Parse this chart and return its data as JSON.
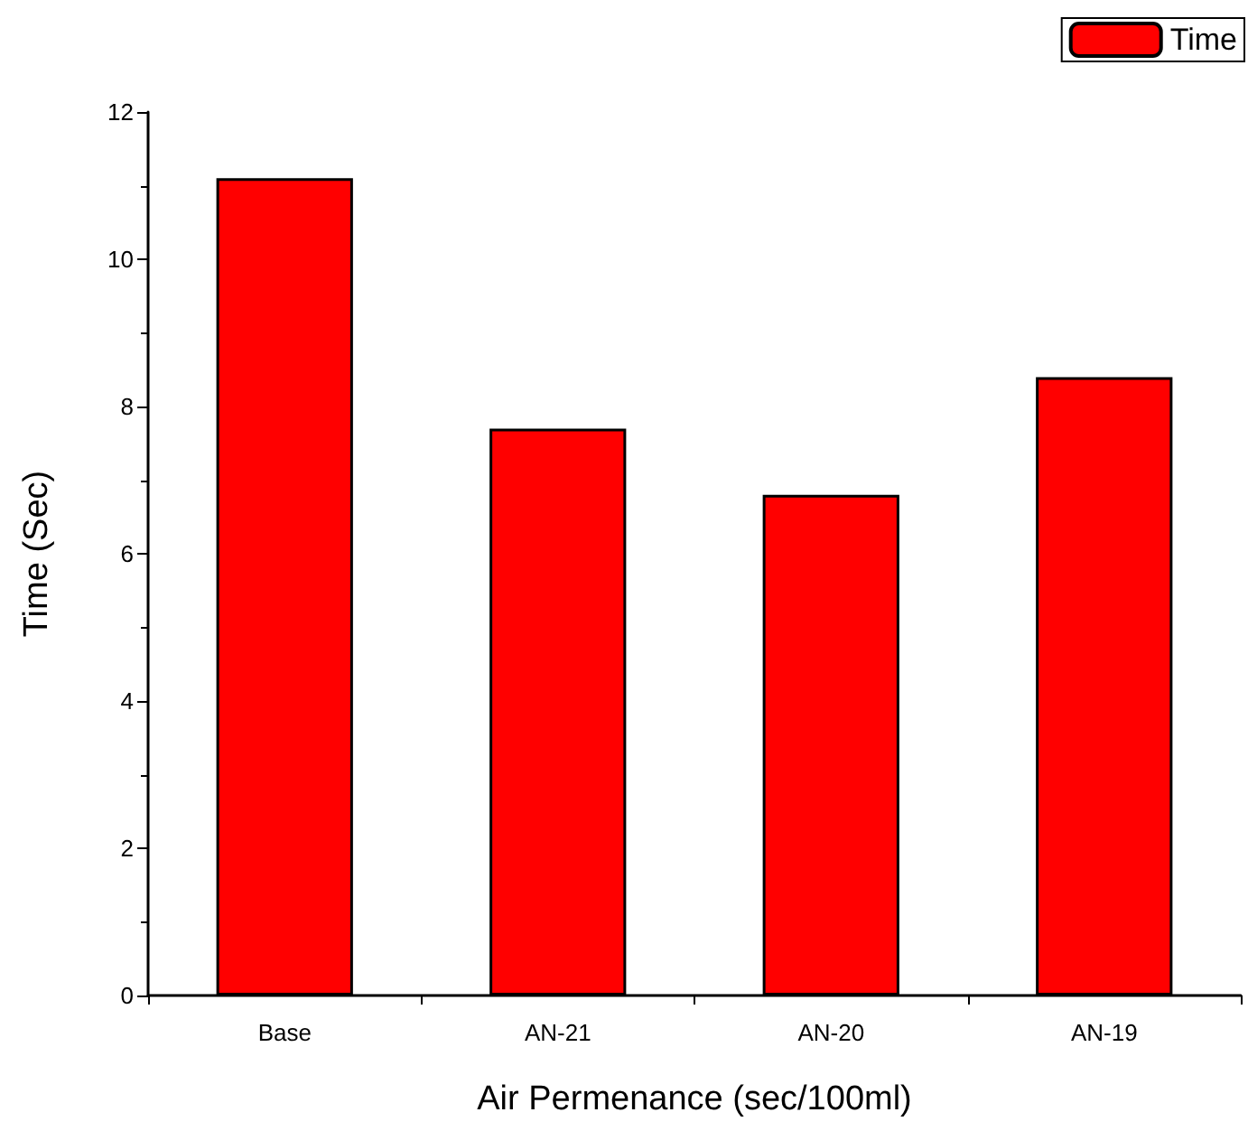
{
  "chart_data": {
    "type": "bar",
    "xlabel": "Air Permenance (sec/100ml)",
    "ylabel": "Time (Sec)",
    "categories": [
      "Base",
      "AN-21",
      "AN-20",
      "AN-19"
    ],
    "series": [
      {
        "name": "Time",
        "color": "#ff0000",
        "values": [
          11.1,
          7.7,
          6.8,
          8.4
        ]
      }
    ],
    "ylim": [
      0,
      12
    ],
    "yticks": [
      0,
      2,
      4,
      6,
      8,
      10,
      12
    ],
    "grid": false,
    "legend": "top right"
  }
}
